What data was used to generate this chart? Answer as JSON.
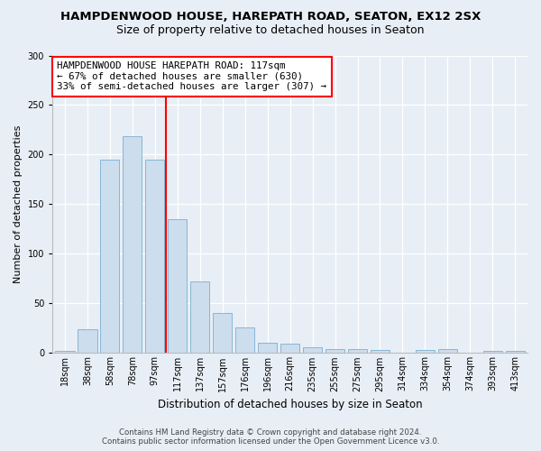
{
  "title": "HAMPDENWOOD HOUSE, HAREPATH ROAD, SEATON, EX12 2SX",
  "subtitle": "Size of property relative to detached houses in Seaton",
  "xlabel": "Distribution of detached houses by size in Seaton",
  "ylabel": "Number of detached properties",
  "bar_labels": [
    "18sqm",
    "38sqm",
    "58sqm",
    "78sqm",
    "97sqm",
    "117sqm",
    "137sqm",
    "157sqm",
    "176sqm",
    "196sqm",
    "216sqm",
    "235sqm",
    "255sqm",
    "275sqm",
    "295sqm",
    "314sqm",
    "334sqm",
    "354sqm",
    "374sqm",
    "393sqm",
    "413sqm"
  ],
  "bar_values": [
    2,
    24,
    195,
    219,
    195,
    135,
    72,
    40,
    26,
    10,
    9,
    6,
    4,
    4,
    3,
    0,
    3,
    4,
    0,
    2,
    2
  ],
  "bar_color": "#ccdded",
  "bar_edge_color": "#7ab0d0",
  "vline_color": "red",
  "vline_index": 5,
  "annotation_text": "HAMPDENWOOD HOUSE HAREPATH ROAD: 117sqm\n← 67% of detached houses are smaller (630)\n33% of semi-detached houses are larger (307) →",
  "annotation_box_color": "white",
  "annotation_box_edge": "red",
  "ylim": [
    0,
    300
  ],
  "yticks": [
    0,
    50,
    100,
    150,
    200,
    250,
    300
  ],
  "footer_line1": "Contains HM Land Registry data © Crown copyright and database right 2024.",
  "footer_line2": "Contains public sector information licensed under the Open Government Licence v3.0.",
  "bg_color": "#e8eef5",
  "plot_bg_color": "#e8eef5",
  "title_fontsize": 9.5,
  "subtitle_fontsize": 9,
  "annotation_fontsize": 7.8,
  "ylabel_fontsize": 8,
  "xlabel_fontsize": 8.5,
  "tick_fontsize": 7,
  "footer_fontsize": 6.2
}
